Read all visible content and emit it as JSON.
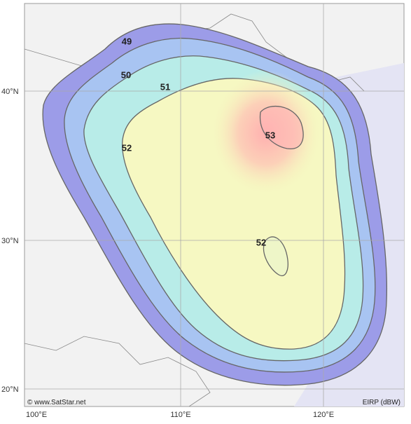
{
  "map": {
    "latitude_labels": [
      "40°N",
      "30°N",
      "20°N"
    ],
    "longitude_labels": [
      "100°E",
      "110°E",
      "120°E"
    ],
    "contour_labels": [
      49,
      50,
      51,
      52,
      53,
      52
    ],
    "credit": "© www.SatStar.net",
    "legend": "EIRP (dBW)"
  }
}
